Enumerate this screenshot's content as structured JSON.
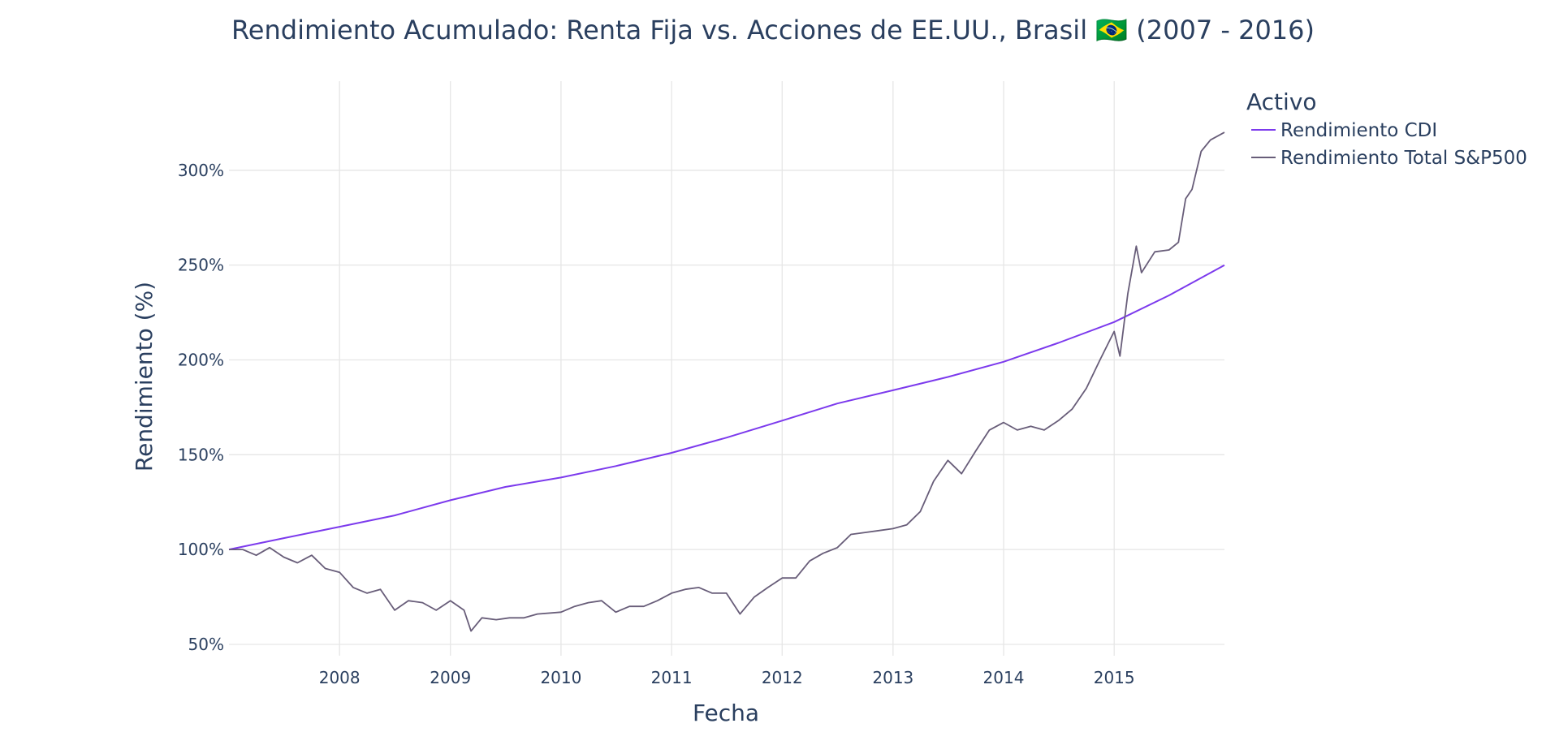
{
  "chart_data": {
    "type": "line",
    "title": "Rendimiento Acumulado: Renta Fija vs. Acciones de EE.UU., Brasil 🇧🇷 (2007 - 2016)",
    "xlabel": "Fecha",
    "ylabel": "Rendimiento (%)",
    "x_tick_labels": [
      "2008",
      "2009",
      "2010",
      "2011",
      "2012",
      "2013",
      "2014",
      "2015"
    ],
    "y_tick_labels": [
      "50%",
      "100%",
      "150%",
      "200%",
      "250%",
      "300%"
    ],
    "y_ticks": [
      50,
      100,
      150,
      200,
      250,
      300
    ],
    "xlim": [
      "2007-01-01",
      "2015-12-31"
    ],
    "ylim": [
      44,
      347
    ],
    "grid": true,
    "legend": {
      "title": "Activo",
      "position": "right-top"
    },
    "series": [
      {
        "name": "Rendimiento CDI",
        "color": "#7c3aed",
        "x": [
          "2007-01-01",
          "2007-07-01",
          "2008-01-01",
          "2008-07-01",
          "2009-01-01",
          "2009-07-01",
          "2010-01-01",
          "2010-07-01",
          "2011-01-01",
          "2011-07-01",
          "2012-01-01",
          "2012-07-01",
          "2013-01-01",
          "2013-07-01",
          "2014-01-01",
          "2014-07-01",
          "2015-01-01",
          "2015-07-01",
          "2015-12-31"
        ],
        "y": [
          100,
          106,
          112,
          118,
          126,
          133,
          138,
          144,
          151,
          159,
          168,
          177,
          184,
          191,
          199,
          209,
          220,
          234,
          250
        ]
      },
      {
        "name": "Rendimiento Total S&P500",
        "color": "#685d79",
        "x": [
          "2007-01-01",
          "2007-02-15",
          "2007-04-01",
          "2007-05-15",
          "2007-07-01",
          "2007-08-15",
          "2007-10-01",
          "2007-11-15",
          "2008-01-01",
          "2008-02-15",
          "2008-04-01",
          "2008-05-15",
          "2008-07-01",
          "2008-08-15",
          "2008-10-01",
          "2008-11-15",
          "2009-01-01",
          "2009-02-15",
          "2009-03-10",
          "2009-04-15",
          "2009-06-01",
          "2009-07-15",
          "2009-09-01",
          "2009-10-15",
          "2010-01-01",
          "2010-02-15",
          "2010-04-01",
          "2010-05-15",
          "2010-07-01",
          "2010-08-15",
          "2010-10-01",
          "2010-11-15",
          "2011-01-01",
          "2011-02-15",
          "2011-04-01",
          "2011-05-15",
          "2011-07-01",
          "2011-08-15",
          "2011-10-01",
          "2011-11-15",
          "2012-01-01",
          "2012-02-15",
          "2012-04-01",
          "2012-05-15",
          "2012-07-01",
          "2012-08-15",
          "2012-10-01",
          "2012-11-15",
          "2013-01-01",
          "2013-02-15",
          "2013-04-01",
          "2013-05-15",
          "2013-07-01",
          "2013-08-15",
          "2013-10-01",
          "2013-11-15",
          "2014-01-01",
          "2014-02-15",
          "2014-04-01",
          "2014-05-15",
          "2014-07-01",
          "2014-08-15",
          "2014-10-01",
          "2014-11-15",
          "2015-01-01",
          "2015-01-20",
          "2015-02-15",
          "2015-03-15",
          "2015-04-01",
          "2015-05-15",
          "2015-07-01",
          "2015-08-01",
          "2015-08-25",
          "2015-09-15",
          "2015-10-15",
          "2015-11-15",
          "2015-12-31"
        ],
        "y": [
          100,
          100,
          97,
          101,
          96,
          93,
          97,
          90,
          88,
          80,
          77,
          79,
          68,
          73,
          72,
          68,
          73,
          68,
          57,
          64,
          63,
          64,
          64,
          66,
          67,
          70,
          72,
          73,
          67,
          70,
          70,
          73,
          77,
          79,
          80,
          77,
          77,
          66,
          75,
          80,
          85,
          85,
          94,
          98,
          101,
          108,
          109,
          110,
          111,
          113,
          120,
          136,
          147,
          140,
          152,
          163,
          167,
          163,
          165,
          163,
          168,
          174,
          185,
          200,
          215,
          202,
          235,
          260,
          246,
          257,
          258,
          262,
          285,
          290,
          310,
          316,
          320
        ]
      }
    ]
  }
}
